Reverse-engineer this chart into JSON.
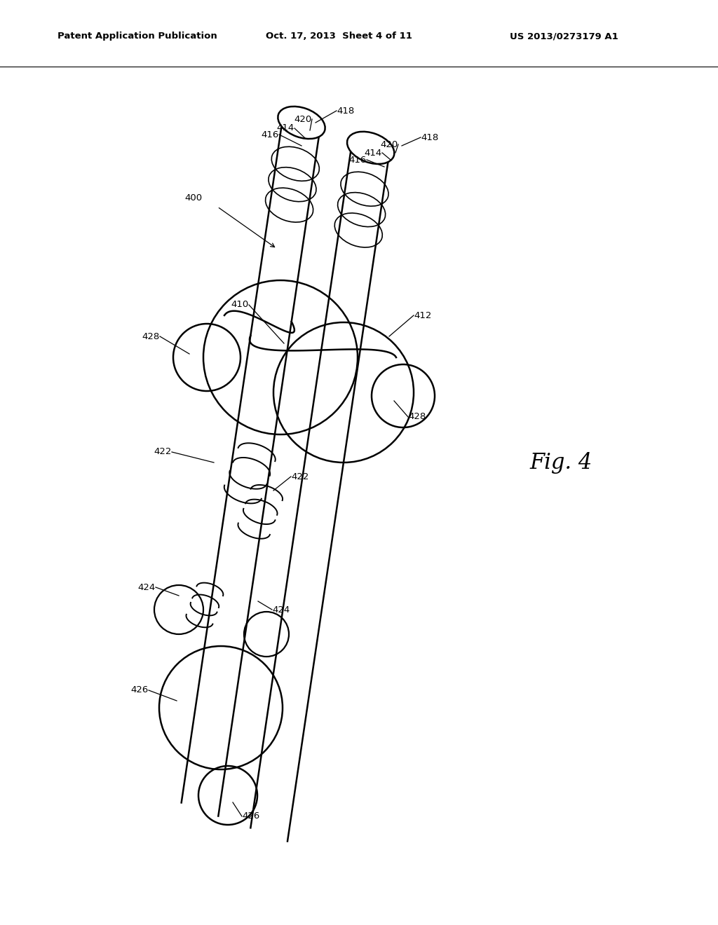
{
  "bg_color": "#ffffff",
  "header_left": "Patent Application Publication",
  "header_center": "Oct. 17, 2013  Sheet 4 of 11",
  "header_right": "US 2013/0273179 A1",
  "fig_label": "Fig. 4"
}
